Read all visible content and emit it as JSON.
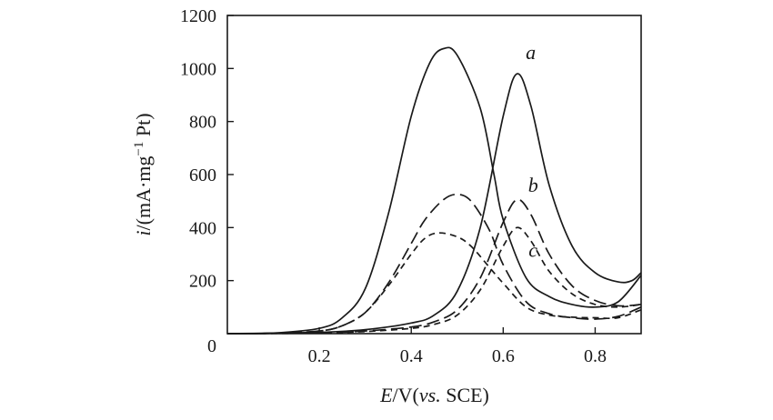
{
  "chart_data": {
    "type": "line",
    "title": "",
    "xlabel": {
      "var": "E",
      "rest": "/V(",
      "italic": "vs.",
      "tail": " SCE)"
    },
    "ylabel": {
      "var": "i",
      "rest": "/(mA·mg",
      "sup": "−1",
      "tail": " Pt)"
    },
    "xlim": [
      0.0,
      0.9
    ],
    "ylim": [
      0,
      1200
    ],
    "xticks": [
      0.2,
      0.4,
      0.6,
      0.8
    ],
    "xtick_labels": [
      "0.2",
      "0.4",
      "0.6",
      "0.8"
    ],
    "yticks": [
      0,
      200,
      400,
      600,
      800,
      1000,
      1200
    ],
    "ytick_labels": [
      "0",
      "200",
      "400",
      "600",
      "800",
      "1000",
      "1200"
    ],
    "grid": false,
    "curve_labels": [
      {
        "text": "a",
        "x": 0.66,
        "y": 1035
      },
      {
        "text": "b",
        "x": 0.665,
        "y": 535
      },
      {
        "text": "c",
        "x": 0.665,
        "y": 290
      }
    ],
    "series": [
      {
        "style": "solid",
        "forward": {
          "peak_x": 0.63,
          "peak_y": 980,
          "points": [
            [
              0,
              0
            ],
            [
              0.2,
              5
            ],
            [
              0.3,
              15
            ],
            [
              0.4,
              40
            ],
            [
              0.45,
              70
            ],
            [
              0.5,
              160
            ],
            [
              0.55,
              400
            ],
            [
              0.6,
              820
            ],
            [
              0.63,
              980
            ],
            [
              0.66,
              860
            ],
            [
              0.7,
              560
            ],
            [
              0.75,
              330
            ],
            [
              0.8,
              230
            ],
            [
              0.85,
              195
            ],
            [
              0.88,
              200
            ],
            [
              0.9,
              230
            ]
          ]
        },
        "reverse": {
          "peak_x": 0.47,
          "peak_y": 1075,
          "points": [
            [
              0.9,
              220
            ],
            [
              0.85,
              120
            ],
            [
              0.8,
              100
            ],
            [
              0.75,
              110
            ],
            [
              0.7,
              140
            ],
            [
              0.65,
              210
            ],
            [
              0.6,
              430
            ],
            [
              0.58,
              600
            ],
            [
              0.55,
              850
            ],
            [
              0.5,
              1050
            ],
            [
              0.47,
              1075
            ],
            [
              0.44,
              1020
            ],
            [
              0.4,
              820
            ],
            [
              0.35,
              450
            ],
            [
              0.3,
              170
            ],
            [
              0.25,
              60
            ],
            [
              0.2,
              20
            ],
            [
              0.1,
              2
            ],
            [
              0,
              0
            ]
          ]
        }
      },
      {
        "style": "long-dash",
        "forward": {
          "peak_x": 0.63,
          "peak_y": 505,
          "points": [
            [
              0,
              0
            ],
            [
              0.2,
              3
            ],
            [
              0.3,
              10
            ],
            [
              0.4,
              25
            ],
            [
              0.45,
              45
            ],
            [
              0.5,
              90
            ],
            [
              0.55,
              210
            ],
            [
              0.6,
              420
            ],
            [
              0.63,
              505
            ],
            [
              0.66,
              450
            ],
            [
              0.7,
              300
            ],
            [
              0.75,
              180
            ],
            [
              0.8,
              125
            ],
            [
              0.85,
              105
            ],
            [
              0.9,
              110
            ]
          ]
        },
        "reverse": {
          "peak_x": 0.5,
          "peak_y": 525,
          "points": [
            [
              0.9,
              100
            ],
            [
              0.85,
              65
            ],
            [
              0.8,
              55
            ],
            [
              0.75,
              60
            ],
            [
              0.7,
              75
            ],
            [
              0.65,
              120
            ],
            [
              0.6,
              260
            ],
            [
              0.57,
              390
            ],
            [
              0.53,
              500
            ],
            [
              0.5,
              525
            ],
            [
              0.47,
              505
            ],
            [
              0.43,
              430
            ],
            [
              0.4,
              340
            ],
            [
              0.35,
              190
            ],
            [
              0.3,
              80
            ],
            [
              0.25,
              30
            ],
            [
              0.2,
              10
            ],
            [
              0.1,
              1
            ],
            [
              0,
              0
            ]
          ]
        }
      },
      {
        "style": "short-dash",
        "forward": {
          "peak_x": 0.63,
          "peak_y": 400,
          "points": [
            [
              0,
              0
            ],
            [
              0.2,
              2
            ],
            [
              0.3,
              8
            ],
            [
              0.4,
              20
            ],
            [
              0.45,
              35
            ],
            [
              0.5,
              70
            ],
            [
              0.55,
              165
            ],
            [
              0.6,
              330
            ],
            [
              0.63,
              400
            ],
            [
              0.66,
              350
            ],
            [
              0.7,
              235
            ],
            [
              0.75,
              150
            ],
            [
              0.8,
              110
            ],
            [
              0.85,
              100
            ],
            [
              0.9,
              110
            ]
          ]
        },
        "reverse": {
          "peak_x": 0.46,
          "peak_y": 380,
          "points": [
            [
              0.9,
              90
            ],
            [
              0.85,
              60
            ],
            [
              0.8,
              60
            ],
            [
              0.75,
              62
            ],
            [
              0.7,
              70
            ],
            [
              0.65,
              100
            ],
            [
              0.6,
              190
            ],
            [
              0.57,
              250
            ],
            [
              0.53,
              330
            ],
            [
              0.5,
              365
            ],
            [
              0.46,
              380
            ],
            [
              0.43,
              360
            ],
            [
              0.4,
              300
            ],
            [
              0.35,
              180
            ],
            [
              0.3,
              80
            ],
            [
              0.25,
              30
            ],
            [
              0.2,
              10
            ],
            [
              0.1,
              1
            ],
            [
              0,
              0
            ]
          ]
        }
      }
    ]
  }
}
